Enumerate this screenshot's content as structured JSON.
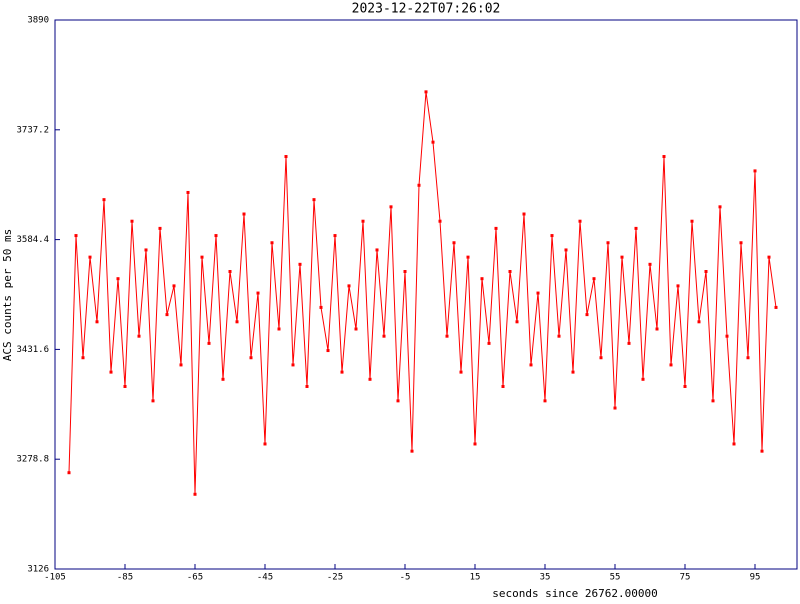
{
  "chart_data": {
    "type": "line",
    "title": "2023-12-22T07:26:02",
    "x_label": "seconds since 26762.00000",
    "y_label": "ACS counts per 50 ms",
    "xlim": [
      -105,
      107
    ],
    "xticks": [
      -105,
      -85,
      -65,
      -45,
      -25,
      -5,
      15,
      35,
      55,
      75,
      95
    ],
    "ylim": [
      3126,
      3890
    ],
    "yticks": [
      3126,
      3278.8,
      3431.6,
      3584.4,
      3737.2,
      3890
    ],
    "series": [
      {
        "color": "#ff0000",
        "x": [
          -101,
          -99,
          -97,
          -95,
          -93,
          -91,
          -89,
          -87,
          -85,
          -83,
          -81,
          -79,
          -77,
          -75,
          -73,
          -71,
          -69,
          -67,
          -65,
          -63,
          -61,
          -59,
          -57,
          -55,
          -53,
          -51,
          -49,
          -47,
          -45,
          -43,
          -41,
          -39,
          -37,
          -35,
          -33,
          -31,
          -29,
          -27,
          -25,
          -23,
          -21,
          -19,
          -17,
          -15,
          -13,
          -11,
          -9,
          -7,
          -5,
          -3,
          -1,
          1,
          3,
          5,
          7,
          9,
          11,
          13,
          15,
          17,
          19,
          21,
          23,
          25,
          27,
          29,
          31,
          33,
          35,
          37,
          39,
          41,
          43,
          45,
          47,
          49,
          51,
          53,
          55,
          57,
          59,
          61,
          63,
          65,
          67,
          69,
          71,
          73,
          75,
          77,
          79,
          81,
          83,
          85,
          87,
          89,
          91,
          93,
          95,
          97,
          99,
          101
        ],
        "values": [
          3260,
          3590,
          3420,
          3560,
          3470,
          3640,
          3400,
          3530,
          3380,
          3610,
          3450,
          3570,
          3360,
          3600,
          3480,
          3520,
          3410,
          3650,
          3230,
          3560,
          3440,
          3590,
          3390,
          3540,
          3470,
          3620,
          3420,
          3510,
          3300,
          3580,
          3460,
          3700,
          3410,
          3550,
          3380,
          3640,
          3490,
          3430,
          3590,
          3400,
          3520,
          3460,
          3610,
          3390,
          3570,
          3450,
          3630,
          3360,
          3540,
          3290,
          3660,
          3790,
          3720,
          3610,
          3450,
          3580,
          3400,
          3560,
          3300,
          3530,
          3440,
          3600,
          3380,
          3540,
          3470,
          3620,
          3410,
          3510,
          3360,
          3590,
          3450,
          3570,
          3400,
          3610,
          3480,
          3530,
          3420,
          3580,
          3350,
          3560,
          3440,
          3600,
          3390,
          3550,
          3460,
          3700,
          3410,
          3520,
          3380,
          3610,
          3470,
          3540,
          3360,
          3630,
          3450,
          3300,
          3580,
          3420,
          3680,
          3290,
          3560,
          3490
        ]
      }
    ]
  }
}
